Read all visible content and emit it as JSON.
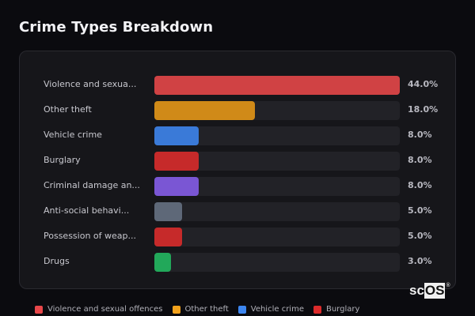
{
  "header": {
    "title": "Crime Types Breakdown"
  },
  "rows": [
    {
      "label": "Violence and sexua...",
      "pct": "44.0%",
      "value": 44.0,
      "color": "#d04244"
    },
    {
      "label": "Other theft",
      "pct": "18.0%",
      "value": 18.0,
      "color": "#d08a18"
    },
    {
      "label": "Vehicle crime",
      "pct": "8.0%",
      "value": 8.0,
      "color": "#3a7ad8"
    },
    {
      "label": "Burglary",
      "pct": "8.0%",
      "value": 8.0,
      "color": "#c62a2a"
    },
    {
      "label": "Criminal damage an...",
      "pct": "8.0%",
      "value": 8.0,
      "color": "#7a56d4"
    },
    {
      "label": "Anti-social behavi...",
      "pct": "5.0%",
      "value": 5.0,
      "color": "#5e6878"
    },
    {
      "label": "Possession of weap...",
      "pct": "5.0%",
      "value": 5.0,
      "color": "#c62a2a"
    },
    {
      "label": "Drugs",
      "pct": "3.0%",
      "value": 3.0,
      "color": "#22a85a"
    }
  ],
  "legend": [
    {
      "label": "Violence and sexual offences",
      "color": "#e8474a"
    },
    {
      "label": "Other theft",
      "color": "#f2a21c"
    },
    {
      "label": "Vehicle crime",
      "color": "#3d86f0"
    },
    {
      "label": "Burglary",
      "color": "#dc2b2b"
    }
  ],
  "logo": {
    "sc": "sc",
    "os": "OS",
    "reg": "®"
  },
  "chart_data": {
    "type": "bar",
    "orientation": "horizontal",
    "title": "Crime Types Breakdown",
    "categories": [
      "Violence and sexual offences",
      "Other theft",
      "Vehicle crime",
      "Burglary",
      "Criminal damage and arson",
      "Anti-social behaviour",
      "Possession of weapons",
      "Drugs"
    ],
    "display_labels": [
      "Violence and sexua...",
      "Other theft",
      "Vehicle crime",
      "Burglary",
      "Criminal damage an...",
      "Anti-social behavi...",
      "Possession of weap...",
      "Drugs"
    ],
    "values": [
      44.0,
      18.0,
      8.0,
      8.0,
      8.0,
      5.0,
      5.0,
      3.0
    ],
    "value_labels": [
      "44.0%",
      "18.0%",
      "8.0%",
      "8.0%",
      "8.0%",
      "5.0%",
      "5.0%",
      "3.0%"
    ],
    "colors": [
      "#d04244",
      "#d08a18",
      "#3a7ad8",
      "#c62a2a",
      "#7a56d4",
      "#5e6878",
      "#c62a2a",
      "#22a85a"
    ],
    "xlabel": "",
    "ylabel": "",
    "xlim": [
      0,
      44
    ],
    "grid": false,
    "legend": {
      "position": "bottom",
      "entries": [
        "Violence and sexual offences",
        "Other theft",
        "Vehicle crime",
        "Burglary"
      ]
    }
  }
}
